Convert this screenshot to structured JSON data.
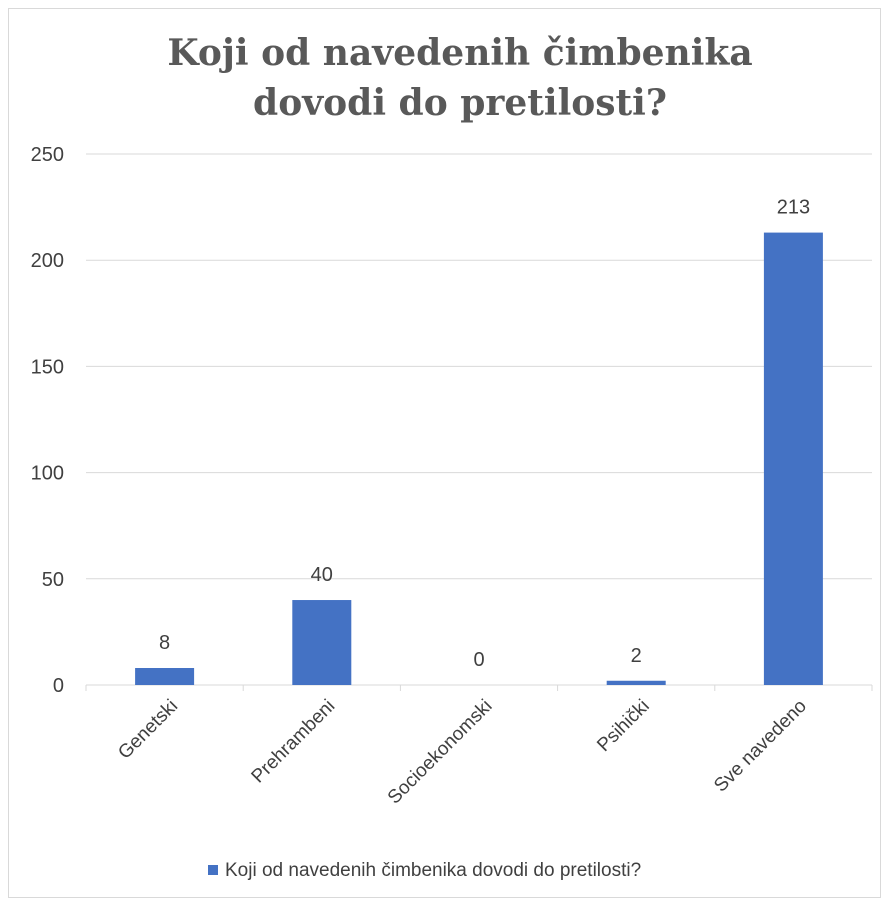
{
  "chart_data": {
    "type": "bar",
    "title": "Koji od navedenih čimbenika dovodi do pretilosti?",
    "categories": [
      "Genetski",
      "Prehrambeni",
      "Socioekonomski",
      "Psihički",
      "Sve navedeno"
    ],
    "series": [
      {
        "name": "Koji od navedenih čimbenika dovodi do pretilosti?",
        "values": [
          8,
          40,
          0,
          2,
          213
        ]
      }
    ],
    "data_labels": [
      "8",
      "40",
      "0",
      "2",
      "213"
    ],
    "ylim": [
      0,
      250
    ],
    "yticks": [
      0,
      50,
      100,
      150,
      200,
      250
    ],
    "xlabel": "",
    "ylabel": "",
    "grid": true,
    "legend": "bottom",
    "bar_color": "#4472c4",
    "grid_color": "#d9d9d9",
    "text_color": "#404040",
    "title_color": "#595959"
  }
}
